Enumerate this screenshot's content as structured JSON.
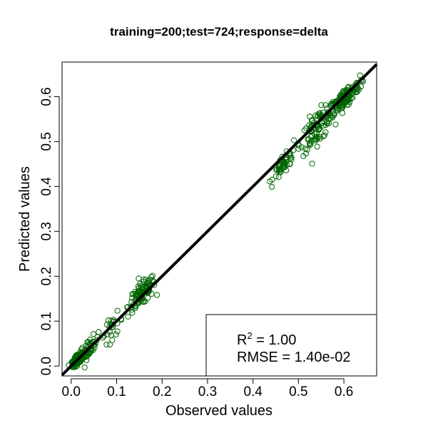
{
  "chart_data": {
    "type": "scatter",
    "title": "training=200;test=724;response=delta",
    "xlabel": "Observed values",
    "ylabel": "Predicted values",
    "xlim": [
      -0.02,
      0.672
    ],
    "ylim": [
      -0.022,
      0.677
    ],
    "xticks": [
      0.0,
      0.1,
      0.2,
      0.3,
      0.4,
      0.5,
      0.6
    ],
    "yticks": [
      0.0,
      0.1,
      0.2,
      0.3,
      0.4,
      0.5,
      0.6
    ],
    "tick_labels": [
      "0.0",
      "0.1",
      "0.2",
      "0.3",
      "0.4",
      "0.5",
      "0.6"
    ],
    "point_color": "#006400",
    "line_color": "#000000",
    "reference_line": {
      "slope": 1,
      "intercept": 0
    },
    "legend": {
      "placement": "bottom-right",
      "r2_label": "R",
      "r2_sup": "2",
      "r2_value": " = 1.00",
      "rmse_line": "RMSE = 1.40e-02"
    },
    "clusters": [
      {
        "x_center": 0.015,
        "y_center": 0.015,
        "x_spread": 0.012,
        "y_spread": 0.01,
        "count": 230
      },
      {
        "x_center": 0.04,
        "y_center": 0.04,
        "x_spread": 0.02,
        "y_spread": 0.02,
        "count": 50
      },
      {
        "x_center": 0.09,
        "y_center": 0.085,
        "x_spread": 0.025,
        "y_spread": 0.025,
        "count": 25
      },
      {
        "x_center": 0.155,
        "y_center": 0.16,
        "x_spread": 0.03,
        "y_spread": 0.025,
        "count": 110
      },
      {
        "x_center": 0.47,
        "y_center": 0.45,
        "x_spread": 0.025,
        "y_spread": 0.02,
        "count": 50
      },
      {
        "x_center": 0.54,
        "y_center": 0.53,
        "x_spread": 0.035,
        "y_spread": 0.035,
        "count": 90
      },
      {
        "x_center": 0.6,
        "y_center": 0.595,
        "x_spread": 0.035,
        "y_spread": 0.02,
        "count": 169
      }
    ]
  }
}
